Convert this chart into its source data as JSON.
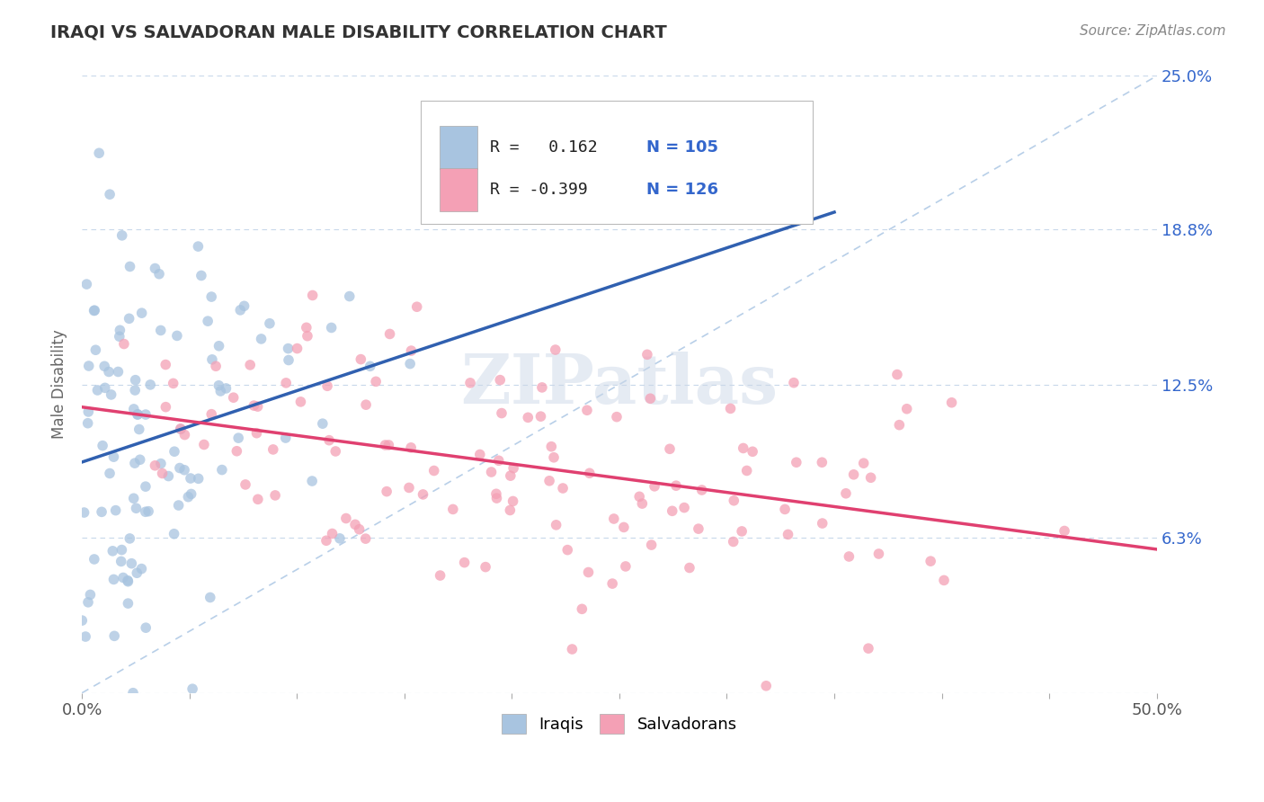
{
  "title": "IRAQI VS SALVADORAN MALE DISABILITY CORRELATION CHART",
  "source": "Source: ZipAtlas.com",
  "ylabel": "Male Disability",
  "xlim": [
    0.0,
    0.5
  ],
  "ylim": [
    0.0,
    0.25
  ],
  "yticks": [
    0.0,
    0.063,
    0.125,
    0.188,
    0.25
  ],
  "ytick_labels": [
    "",
    "6.3%",
    "12.5%",
    "18.8%",
    "25.0%"
  ],
  "xtick_left_label": "0.0%",
  "xtick_right_label": "50.0%",
  "iraqi_color": "#a8c4e0",
  "salvadoran_color": "#f4a0b5",
  "iraqi_line_color": "#3060b0",
  "salvadoran_line_color": "#e04070",
  "diagonal_color": "#b8cfe8",
  "R_iraqi": 0.162,
  "N_iraqi": 105,
  "R_salvadoran": -0.399,
  "N_salvadoran": 126,
  "watermark": "ZIPatlas",
  "legend_labels": [
    "Iraqis",
    "Salvadorans"
  ],
  "background_color": "#ffffff",
  "iraqi_seed": 7,
  "sal_seed": 13,
  "legend_R_color": "#222222",
  "legend_N_color": "#3366cc",
  "gridline_color": "#c8d8ea",
  "ylabel_color": "#666666",
  "title_color": "#333333",
  "source_color": "#888888",
  "xtick_color": "#555555"
}
